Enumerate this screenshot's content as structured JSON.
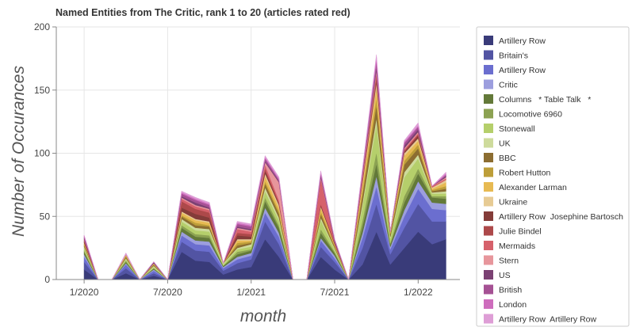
{
  "chart_data": {
    "type": "area",
    "stacked": true,
    "title": "Named Entities from The Critic, rank 1 to 20 (articles rated red)",
    "xlabel": "month",
    "ylabel": "Number of Occurances",
    "ylim": [
      0,
      200
    ],
    "yticks": [
      "0",
      "50",
      "100",
      "150",
      "200"
    ],
    "xticks": [
      {
        "label": "1/2020",
        "at": "2020-01"
      },
      {
        "label": "7/2020",
        "at": "2020-07"
      },
      {
        "label": "1/2021",
        "at": "2021-01"
      },
      {
        "label": "7/2021",
        "at": "2021-07"
      },
      {
        "label": "1/2022",
        "at": "2022-01"
      }
    ],
    "grid": true,
    "legend_position": "right",
    "x": [
      "2020-01",
      "2020-02",
      "2020-03",
      "2020-04",
      "2020-05",
      "2020-06",
      "2020-07",
      "2020-08",
      "2020-09",
      "2020-10",
      "2020-11",
      "2020-12",
      "2021-01",
      "2021-02",
      "2021-03",
      "2021-04",
      "2021-05",
      "2021-06",
      "2021-07",
      "2021-08",
      "2021-09",
      "2021-10",
      "2021-11",
      "2021-12",
      "2022-01",
      "2022-02",
      "2022-03"
    ],
    "series": [
      {
        "name": "Artillery Row",
        "color": "#393b79",
        "values": [
          8,
          0,
          0,
          5,
          0,
          3,
          0,
          22,
          15,
          14,
          4,
          8,
          10,
          32,
          18,
          0,
          0,
          18,
          8,
          0,
          12,
          38,
          12,
          25,
          38,
          28,
          32
        ]
      },
      {
        "name": "Britain's",
        "color": "#5254a3",
        "values": [
          6,
          0,
          0,
          4,
          0,
          2,
          0,
          8,
          8,
          8,
          3,
          5,
          6,
          14,
          10,
          0,
          0,
          8,
          6,
          0,
          13,
          22,
          8,
          16,
          22,
          18,
          14
        ]
      },
      {
        "name": "Artillery Row",
        "color": "#6b6ecf",
        "values": [
          4,
          0,
          0,
          3,
          0,
          2,
          0,
          5,
          5,
          5,
          2,
          3,
          3,
          7,
          6,
          0,
          0,
          5,
          3,
          0,
          8,
          14,
          4,
          9,
          12,
          10,
          9
        ]
      },
      {
        "name": "Critic",
        "color": "#9c9ede",
        "values": [
          2,
          0,
          0,
          1,
          0,
          1,
          0,
          3,
          3,
          3,
          1,
          2,
          2,
          4,
          3,
          0,
          0,
          2,
          2,
          0,
          4,
          8,
          2,
          5,
          6,
          5,
          5
        ]
      },
      {
        "name": "Columns   * Table Talk   *",
        "color": "#637939",
        "values": [
          2,
          0,
          0,
          1,
          0,
          1,
          0,
          3,
          3,
          3,
          1,
          2,
          2,
          5,
          4,
          0,
          0,
          4,
          2,
          0,
          5,
          10,
          2,
          6,
          6,
          4,
          4
        ]
      },
      {
        "name": "Locomotive 6960",
        "color": "#8ca252",
        "values": [
          1,
          0,
          0,
          1,
          0,
          0,
          0,
          2,
          2,
          2,
          0,
          2,
          1,
          3,
          2,
          0,
          0,
          3,
          1,
          0,
          5,
          9,
          1,
          5,
          4,
          1,
          2
        ]
      },
      {
        "name": "Stonewall",
        "color": "#b5cf6b",
        "values": [
          2,
          0,
          0,
          1,
          0,
          1,
          0,
          3,
          3,
          3,
          1,
          2,
          2,
          5,
          4,
          0,
          0,
          7,
          2,
          0,
          11,
          22,
          4,
          15,
          8,
          2,
          2
        ]
      },
      {
        "name": "UK",
        "color": "#cedb9c",
        "values": [
          1,
          0,
          0,
          1,
          0,
          1,
          0,
          2,
          2,
          2,
          1,
          1,
          2,
          3,
          2,
          0,
          0,
          2,
          1,
          0,
          3,
          5,
          1,
          4,
          3,
          1,
          2
        ]
      },
      {
        "name": "BBC",
        "color": "#8c6d31",
        "values": [
          1,
          0,
          0,
          1,
          0,
          1,
          0,
          2,
          2,
          2,
          0,
          2,
          1,
          3,
          3,
          0,
          0,
          3,
          1,
          0,
          6,
          10,
          2,
          6,
          5,
          1,
          2
        ]
      },
      {
        "name": "Robert Hutton",
        "color": "#bd9e39",
        "values": [
          1,
          0,
          0,
          1,
          0,
          0,
          0,
          1,
          2,
          1,
          0,
          2,
          1,
          2,
          2,
          0,
          0,
          2,
          1,
          0,
          4,
          6,
          1,
          3,
          3,
          1,
          2
        ]
      },
      {
        "name": "Alexander Larman",
        "color": "#e7ba52",
        "values": [
          1,
          0,
          0,
          1,
          0,
          1,
          0,
          2,
          2,
          2,
          0,
          2,
          1,
          4,
          3,
          0,
          0,
          3,
          1,
          0,
          4,
          8,
          1,
          4,
          3,
          1,
          3
        ]
      },
      {
        "name": "Ukraine",
        "color": "#e7cb94",
        "values": [
          0,
          0,
          0,
          0,
          0,
          0,
          0,
          1,
          1,
          1,
          0,
          1,
          1,
          2,
          2,
          0,
          0,
          1,
          0,
          0,
          2,
          4,
          0,
          2,
          2,
          1,
          2
        ]
      },
      {
        "name": "Artillery Row  Josephine Bartosch",
        "color": "#843c39",
        "values": [
          1,
          0,
          0,
          0,
          0,
          0,
          0,
          3,
          4,
          3,
          0,
          3,
          2,
          2,
          1,
          0,
          0,
          1,
          1,
          0,
          1,
          3,
          0,
          1,
          2,
          0,
          0
        ]
      },
      {
        "name": "Julie Bindel",
        "color": "#ad494a",
        "values": [
          1,
          0,
          0,
          0,
          0,
          0,
          0,
          5,
          4,
          4,
          0,
          2,
          2,
          2,
          1,
          0,
          0,
          1,
          0,
          0,
          1,
          2,
          0,
          1,
          1,
          0,
          0
        ]
      },
      {
        "name": "Mermaids",
        "color": "#d6616b",
        "values": [
          1,
          0,
          0,
          0,
          0,
          0,
          0,
          2,
          2,
          2,
          0,
          3,
          2,
          3,
          2,
          0,
          0,
          20,
          1,
          0,
          3,
          3,
          0,
          1,
          1,
          1,
          1
        ]
      },
      {
        "name": "Stern",
        "color": "#e7969c",
        "values": [
          0,
          0,
          0,
          0,
          0,
          0,
          0,
          1,
          1,
          1,
          0,
          1,
          1,
          2,
          14,
          0,
          0,
          1,
          0,
          0,
          1,
          2,
          0,
          1,
          1,
          0,
          1
        ]
      },
      {
        "name": "US",
        "color": "#7b4173",
        "values": [
          1,
          0,
          0,
          0,
          0,
          1,
          0,
          1,
          2,
          1,
          0,
          1,
          1,
          1,
          1,
          0,
          0,
          1,
          1,
          0,
          1,
          3,
          0,
          2,
          2,
          0,
          1
        ]
      },
      {
        "name": "British",
        "color": "#a55194",
        "values": [
          1,
          0,
          0,
          0,
          0,
          0,
          0,
          2,
          2,
          2,
          0,
          2,
          2,
          2,
          1,
          0,
          0,
          2,
          1,
          0,
          2,
          4,
          0,
          2,
          2,
          0,
          1
        ]
      },
      {
        "name": "London",
        "color": "#ce6dbd",
        "values": [
          1,
          0,
          0,
          0,
          0,
          0,
          0,
          1,
          1,
          1,
          0,
          1,
          1,
          1,
          1,
          0,
          0,
          1,
          0,
          0,
          1,
          3,
          0,
          1,
          1,
          0,
          1
        ]
      },
      {
        "name": "Artillery Row  Artillery Row",
        "color": "#de9ed6",
        "values": [
          0,
          0,
          0,
          1,
          0,
          0,
          0,
          1,
          1,
          1,
          0,
          1,
          1,
          1,
          1,
          0,
          0,
          1,
          0,
          0,
          1,
          2,
          0,
          1,
          2,
          0,
          1
        ]
      }
    ]
  }
}
